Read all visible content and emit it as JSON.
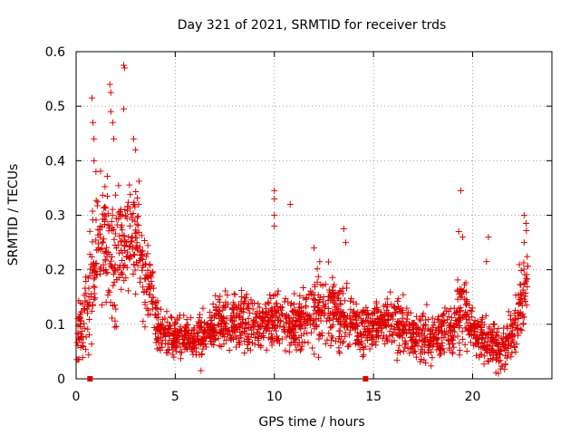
{
  "chart_data": {
    "type": "scatter",
    "title": "Day 321 of 2021, SRMTID for receiver trds",
    "xlabel": "GPS time / hours",
    "ylabel": "SRMTID / TECUs",
    "xlim": [
      0,
      24
    ],
    "ylim": [
      0,
      0.6
    ],
    "x_ticks": [
      0,
      5,
      10,
      15,
      20
    ],
    "x_tick_labels": [
      "0",
      "5",
      "10",
      "15",
      "20"
    ],
    "y_ticks": [
      0,
      0.1,
      0.2,
      0.3,
      0.4,
      0.5,
      0.6
    ],
    "y_tick_labels": [
      "0",
      "0.1",
      "0.2",
      "0.3",
      "0.4",
      "0.5",
      "0.6"
    ],
    "grid": true,
    "marker": "plus",
    "color": "#dd0000",
    "gap_markers_x": [
      0.7,
      14.6
    ],
    "series": [
      {
        "name": "SRMTID",
        "envelope": [
          {
            "x": 0.0,
            "level": 0.07,
            "spread": 0.035
          },
          {
            "x": 0.4,
            "level": 0.1,
            "spread": 0.05
          },
          {
            "x": 0.7,
            "level": 0.16,
            "spread": 0.07
          },
          {
            "x": 1.0,
            "level": 0.24,
            "spread": 0.08
          },
          {
            "x": 1.5,
            "level": 0.26,
            "spread": 0.08
          },
          {
            "x": 2.0,
            "level": 0.22,
            "spread": 0.08
          },
          {
            "x": 2.5,
            "level": 0.27,
            "spread": 0.08
          },
          {
            "x": 3.0,
            "level": 0.26,
            "spread": 0.07
          },
          {
            "x": 3.5,
            "level": 0.2,
            "spread": 0.06
          },
          {
            "x": 3.9,
            "level": 0.14,
            "spread": 0.04
          },
          {
            "x": 4.2,
            "level": 0.085,
            "spread": 0.03
          },
          {
            "x": 5.0,
            "level": 0.075,
            "spread": 0.025
          },
          {
            "x": 6.0,
            "level": 0.07,
            "spread": 0.025
          },
          {
            "x": 7.0,
            "level": 0.1,
            "spread": 0.03
          },
          {
            "x": 8.0,
            "level": 0.11,
            "spread": 0.035
          },
          {
            "x": 9.0,
            "level": 0.1,
            "spread": 0.035
          },
          {
            "x": 10.0,
            "level": 0.11,
            "spread": 0.04
          },
          {
            "x": 11.0,
            "level": 0.1,
            "spread": 0.035
          },
          {
            "x": 12.0,
            "level": 0.12,
            "spread": 0.045
          },
          {
            "x": 13.0,
            "level": 0.13,
            "spread": 0.045
          },
          {
            "x": 14.0,
            "level": 0.1,
            "spread": 0.035
          },
          {
            "x": 14.6,
            "level": 0.09,
            "spread": 0.03
          },
          {
            "x": 15.0,
            "level": 0.1,
            "spread": 0.03
          },
          {
            "x": 16.0,
            "level": 0.1,
            "spread": 0.035
          },
          {
            "x": 17.0,
            "level": 0.08,
            "spread": 0.03
          },
          {
            "x": 18.0,
            "level": 0.075,
            "spread": 0.03
          },
          {
            "x": 19.0,
            "level": 0.09,
            "spread": 0.035
          },
          {
            "x": 19.5,
            "level": 0.14,
            "spread": 0.05
          },
          {
            "x": 20.0,
            "level": 0.08,
            "spread": 0.03
          },
          {
            "x": 21.0,
            "level": 0.07,
            "spread": 0.03
          },
          {
            "x": 21.5,
            "level": 0.05,
            "spread": 0.025
          },
          {
            "x": 22.0,
            "level": 0.08,
            "spread": 0.03
          },
          {
            "x": 22.5,
            "level": 0.15,
            "spread": 0.05
          },
          {
            "x": 22.8,
            "level": 0.18,
            "spread": 0.05
          }
        ],
        "notable_points": [
          {
            "x": 0.8,
            "y": 0.515
          },
          {
            "x": 0.85,
            "y": 0.47
          },
          {
            "x": 0.9,
            "y": 0.44
          },
          {
            "x": 0.9,
            "y": 0.4
          },
          {
            "x": 1.0,
            "y": 0.38
          },
          {
            "x": 1.7,
            "y": 0.54
          },
          {
            "x": 1.75,
            "y": 0.525
          },
          {
            "x": 1.75,
            "y": 0.49
          },
          {
            "x": 1.85,
            "y": 0.47
          },
          {
            "x": 1.9,
            "y": 0.44
          },
          {
            "x": 2.4,
            "y": 0.575
          },
          {
            "x": 2.45,
            "y": 0.57
          },
          {
            "x": 2.4,
            "y": 0.495
          },
          {
            "x": 2.9,
            "y": 0.44
          },
          {
            "x": 3.0,
            "y": 0.42
          },
          {
            "x": 10.0,
            "y": 0.345
          },
          {
            "x": 10.0,
            "y": 0.33
          },
          {
            "x": 10.0,
            "y": 0.3
          },
          {
            "x": 10.0,
            "y": 0.28
          },
          {
            "x": 10.8,
            "y": 0.32
          },
          {
            "x": 12.0,
            "y": 0.24
          },
          {
            "x": 13.5,
            "y": 0.275
          },
          {
            "x": 13.6,
            "y": 0.25
          },
          {
            "x": 19.4,
            "y": 0.345
          },
          {
            "x": 19.3,
            "y": 0.27
          },
          {
            "x": 19.5,
            "y": 0.26
          },
          {
            "x": 20.8,
            "y": 0.26
          },
          {
            "x": 20.7,
            "y": 0.215
          },
          {
            "x": 22.6,
            "y": 0.3
          },
          {
            "x": 22.7,
            "y": 0.285
          },
          {
            "x": 22.6,
            "y": 0.25
          },
          {
            "x": 6.3,
            "y": 0.015
          },
          {
            "x": 21.3,
            "y": 0.01
          }
        ]
      }
    ]
  }
}
